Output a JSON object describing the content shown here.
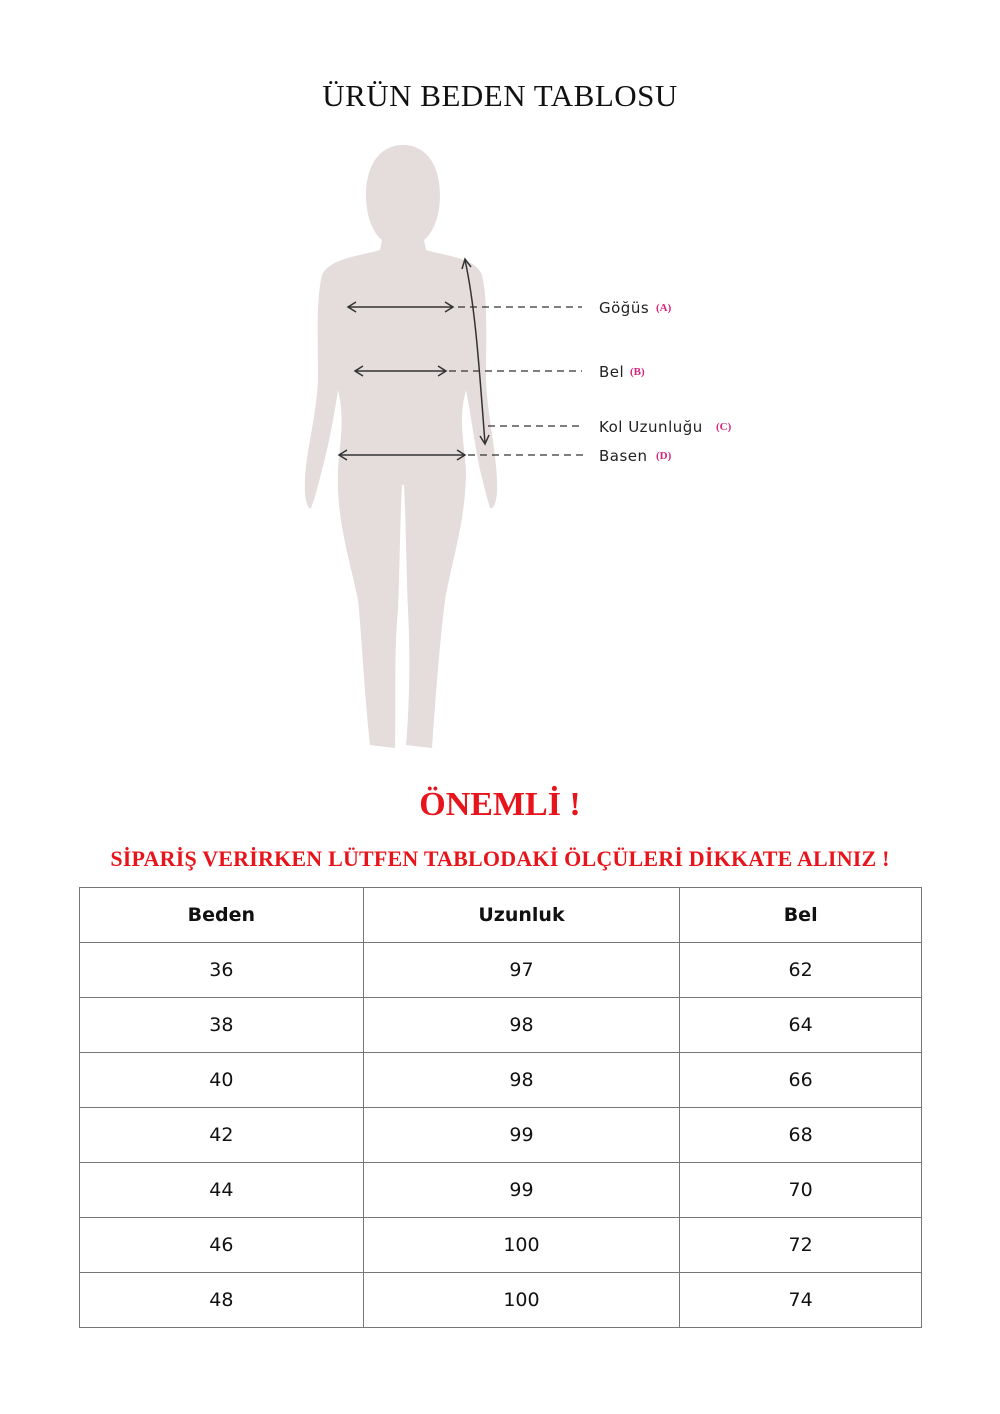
{
  "title": "ÜRÜN BEDEN TABLOSU",
  "diagram": {
    "labels": [
      {
        "text": "Göğüs",
        "tag": "(A)"
      },
      {
        "text": "Bel",
        "tag": "(B)"
      },
      {
        "text": "Kol Uzunluğu",
        "tag": "(C)"
      },
      {
        "text": "Basen",
        "tag": "(D)"
      }
    ],
    "silhouette_color": "#e5dcdc",
    "tag_color": "#d6257a"
  },
  "important": "ÖNEMLİ !",
  "notice": "SİPARİŞ VERİRKEN LÜTFEN TABLODAKİ ÖLÇÜLERİ DİKKATE ALINIZ !",
  "table": {
    "headers": [
      "Beden",
      "Uzunluk",
      "Bel"
    ],
    "rows": [
      [
        "36",
        "97",
        "62"
      ],
      [
        "38",
        "98",
        "64"
      ],
      [
        "40",
        "98",
        "66"
      ],
      [
        "42",
        "99",
        "68"
      ],
      [
        "44",
        "99",
        "70"
      ],
      [
        "46",
        "100",
        "72"
      ],
      [
        "48",
        "100",
        "74"
      ]
    ]
  }
}
